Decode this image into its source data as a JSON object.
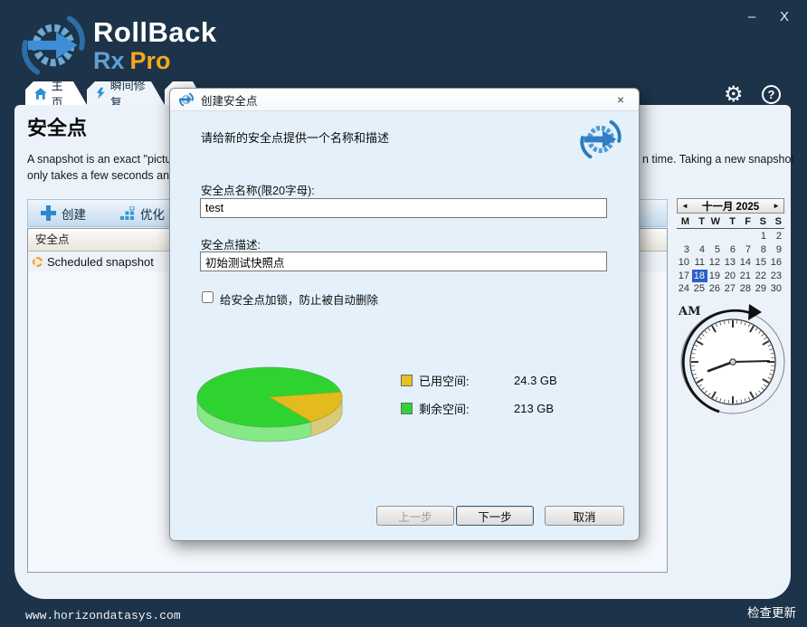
{
  "brand": {
    "name_top": "RollBack",
    "name_rx": "Rx",
    "name_pro": "Pro"
  },
  "window_controls": {
    "minimize": "–",
    "close": "X"
  },
  "tabs": [
    {
      "label": "主页"
    },
    {
      "label": "瞬间修复"
    },
    {
      "label": ""
    }
  ],
  "header_icons": {
    "settings": "⚙",
    "help": "?"
  },
  "page": {
    "title": "安全点",
    "desc_left_1": "A snapshot is an exact \"picture\" o",
    "desc_left_2": "only takes a few seconds and use",
    "desc_right": "n time. Taking a new snapshot"
  },
  "toolbar": {
    "create": "创建",
    "optimize": "优化"
  },
  "snapshot_table": {
    "header": "安全点",
    "rows": [
      "Scheduled snapshot"
    ]
  },
  "calendar": {
    "prev": "◄",
    "next": "►",
    "title": "十一月 2025",
    "weekdays": [
      "M",
      "T",
      "W",
      "T",
      "F",
      "S",
      "S"
    ],
    "weeks": [
      [
        "",
        "",
        "",
        "",
        "",
        "1",
        "2"
      ],
      [
        "3",
        "4",
        "5",
        "6",
        "7",
        "8",
        "9"
      ],
      [
        "10",
        "11",
        "12",
        "13",
        "14",
        "15",
        "16"
      ],
      [
        "17",
        "18",
        "19",
        "20",
        "21",
        "22",
        "23"
      ],
      [
        "24",
        "25",
        "26",
        "27",
        "28",
        "29",
        "30"
      ]
    ],
    "selected_day": "18"
  },
  "clock": {
    "meridiem": "AM"
  },
  "dialog": {
    "title": "创建安全点",
    "close": "×",
    "prompt": "请给新的安全点提供一个名称和描述",
    "name_label": "安全点名称(限20字母):",
    "name_value": "test",
    "desc_label": "安全点描述:",
    "desc_value": "初始测试快照点",
    "lock_label": "给安全点加锁，防止被自动删除",
    "legend": [
      {
        "label": "已用空间:",
        "value": "24.3 GB",
        "color": "#e8c31d"
      },
      {
        "label": "剩余空间:",
        "value": "213 GB",
        "color": "#33d233"
      }
    ],
    "buttons": {
      "back": "上一步",
      "next": "下一步",
      "cancel": "取消"
    }
  },
  "chart_data": {
    "type": "pie",
    "labels": [
      "已用空间",
      "剩余空间"
    ],
    "values_gb": [
      24.3,
      213
    ],
    "unit": "GB",
    "colors": [
      "#e8c31d",
      "#33d233"
    ],
    "legend_position": "right"
  },
  "footer": {
    "website": "www.horizondatasys.com",
    "check_update": "检查更新"
  },
  "colors": {
    "frame": "#1d3349",
    "content_bg": "#ebf2f9",
    "dialog_bg": "#e4f1fb",
    "accent_blue": "#2f87cf",
    "selection": "#2a5fc7"
  }
}
